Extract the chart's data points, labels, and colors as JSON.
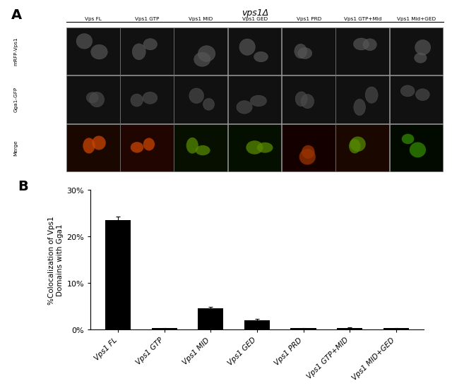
{
  "categories": [
    "Vps1 FL",
    "Vps1 GTP",
    "Vps1 MID",
    "Vps1 GED",
    "Vps1 PRD",
    "Vps1 GTP+MID",
    "Vps1 MID+GED"
  ],
  "values": [
    23.5,
    0.3,
    4.5,
    2.0,
    0.3,
    0.4,
    0.3
  ],
  "errors": [
    0.8,
    0.1,
    0.4,
    0.3,
    0.1,
    0.1,
    0.1
  ],
  "bar_color": "#000000",
  "ylabel": "%Colocalization of Vps1\nDomains with Gga1",
  "yticks": [
    0,
    10,
    20,
    30
  ],
  "yticklabels": [
    "0%",
    "10%",
    "20%",
    "30%"
  ],
  "ylim": [
    0,
    30
  ],
  "panel_B_label": "B",
  "panel_A_label": "A",
  "background_color": "#ffffff",
  "title_vps1": "vps1Δ",
  "row_labels": [
    "mRFP-Vps1",
    "Gga1-GFP",
    "Merge"
  ],
  "col_labels": [
    "Vps FL",
    "Vps1 GTP",
    "Vps1 MID",
    "Vps1 GED",
    "Vps1 PRD",
    "Vps1 GTP+Mld",
    "Vps1 Mid+GED"
  ],
  "cell_gray": "#888888",
  "cell_border": "#aaaaaa",
  "merge_bg_colors": [
    "#1a0800",
    "#200500",
    "#060f00",
    "#050f00",
    "#150000",
    "#1a0800",
    "#020a00"
  ]
}
